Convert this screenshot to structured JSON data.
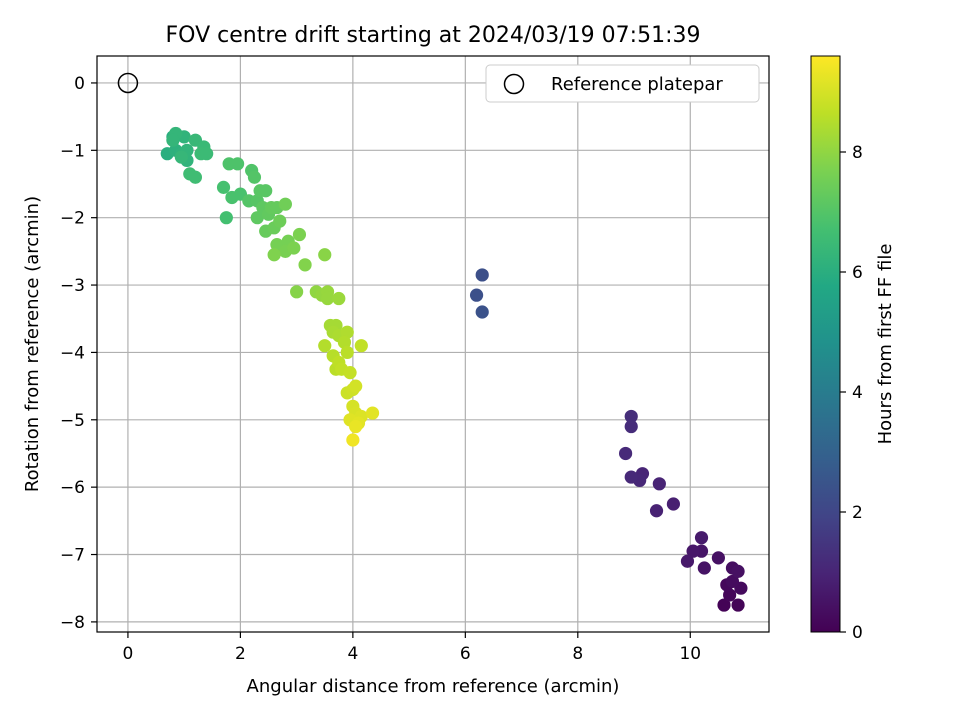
{
  "chart_data": {
    "type": "scatter",
    "title": "FOV centre drift starting at 2024/03/19 07:51:39",
    "xlabel": "Angular distance from reference (arcmin)",
    "ylabel": "Rotation from reference (arcmin)",
    "xlim": [
      -0.55,
      11.4
    ],
    "ylim": [
      -8.15,
      0.4
    ],
    "xticks": [
      0,
      2,
      4,
      6,
      8,
      10
    ],
    "yticks": [
      0,
      -1,
      -2,
      -3,
      -4,
      -5,
      -6,
      -7,
      -8
    ],
    "grid": true,
    "legend": {
      "position": "top-right",
      "entries": [
        "Reference platepar"
      ]
    },
    "reference_point": {
      "x": 0,
      "y": 0
    },
    "colorbar": {
      "label": "Hours from first FF file",
      "min": 0,
      "max": 9.6,
      "ticks": [
        0,
        2,
        4,
        6,
        8
      ],
      "colormap": "viridis"
    },
    "points": [
      {
        "x": 10.6,
        "y": -7.75,
        "h": 0.05
      },
      {
        "x": 10.85,
        "y": -7.75,
        "h": 0.1
      },
      {
        "x": 10.7,
        "y": -7.6,
        "h": 0.15
      },
      {
        "x": 10.65,
        "y": -7.45,
        "h": 0.2
      },
      {
        "x": 10.9,
        "y": -7.5,
        "h": 0.25
      },
      {
        "x": 10.75,
        "y": -7.4,
        "h": 0.3
      },
      {
        "x": 10.75,
        "y": -7.2,
        "h": 0.35
      },
      {
        "x": 10.85,
        "y": -7.25,
        "h": 0.4
      },
      {
        "x": 10.5,
        "y": -7.05,
        "h": 0.45
      },
      {
        "x": 10.25,
        "y": -7.2,
        "h": 0.5
      },
      {
        "x": 10.2,
        "y": -6.95,
        "h": 0.55
      },
      {
        "x": 10.05,
        "y": -6.95,
        "h": 0.6
      },
      {
        "x": 9.95,
        "y": -7.1,
        "h": 0.65
      },
      {
        "x": 10.2,
        "y": -6.75,
        "h": 0.7
      },
      {
        "x": 9.7,
        "y": -6.25,
        "h": 0.85
      },
      {
        "x": 9.4,
        "y": -6.35,
        "h": 0.9
      },
      {
        "x": 9.45,
        "y": -5.95,
        "h": 0.95
      },
      {
        "x": 9.15,
        "y": -5.8,
        "h": 1.0
      },
      {
        "x": 9.1,
        "y": -5.9,
        "h": 1.05
      },
      {
        "x": 8.95,
        "y": -5.85,
        "h": 1.1
      },
      {
        "x": 8.85,
        "y": -5.5,
        "h": 1.15
      },
      {
        "x": 8.95,
        "y": -5.1,
        "h": 1.2
      },
      {
        "x": 8.95,
        "y": -4.95,
        "h": 1.25
      },
      {
        "x": 6.3,
        "y": -2.85,
        "h": 2.3
      },
      {
        "x": 6.2,
        "y": -3.15,
        "h": 2.35
      },
      {
        "x": 6.3,
        "y": -3.4,
        "h": 2.4
      },
      {
        "x": 0.7,
        "y": -1.05,
        "h": 6.0
      },
      {
        "x": 0.8,
        "y": -0.8,
        "h": 6.0
      },
      {
        "x": 0.85,
        "y": -1.0,
        "h": 6.1
      },
      {
        "x": 0.95,
        "y": -1.05,
        "h": 6.15
      },
      {
        "x": 1.0,
        "y": -0.8,
        "h": 6.2
      },
      {
        "x": 1.05,
        "y": -1.15,
        "h": 6.2
      },
      {
        "x": 1.05,
        "y": -1.0,
        "h": 6.25
      },
      {
        "x": 0.85,
        "y": -0.75,
        "h": 6.3
      },
      {
        "x": 0.8,
        "y": -0.85,
        "h": 6.3
      },
      {
        "x": 0.95,
        "y": -1.1,
        "h": 6.35
      },
      {
        "x": 1.2,
        "y": -0.85,
        "h": 6.4
      },
      {
        "x": 1.35,
        "y": -0.95,
        "h": 6.45
      },
      {
        "x": 1.3,
        "y": -1.05,
        "h": 6.5
      },
      {
        "x": 1.4,
        "y": -1.05,
        "h": 6.5
      },
      {
        "x": 1.1,
        "y": -1.35,
        "h": 6.6
      },
      {
        "x": 1.2,
        "y": -1.4,
        "h": 6.6
      },
      {
        "x": 1.75,
        "y": -2.0,
        "h": 6.7
      },
      {
        "x": 1.7,
        "y": -1.55,
        "h": 6.75
      },
      {
        "x": 1.85,
        "y": -1.7,
        "h": 6.8
      },
      {
        "x": 2.0,
        "y": -1.65,
        "h": 6.8
      },
      {
        "x": 1.8,
        "y": -1.2,
        "h": 6.9
      },
      {
        "x": 1.95,
        "y": -1.2,
        "h": 6.9
      },
      {
        "x": 2.2,
        "y": -1.3,
        "h": 6.95
      },
      {
        "x": 2.25,
        "y": -1.4,
        "h": 7.0
      },
      {
        "x": 2.15,
        "y": -1.75,
        "h": 7.0
      },
      {
        "x": 2.3,
        "y": -1.75,
        "h": 7.05
      },
      {
        "x": 2.35,
        "y": -1.6,
        "h": 7.1
      },
      {
        "x": 2.45,
        "y": -1.6,
        "h": 7.1
      },
      {
        "x": 2.3,
        "y": -2.0,
        "h": 7.2
      },
      {
        "x": 2.4,
        "y": -1.85,
        "h": 7.2
      },
      {
        "x": 2.5,
        "y": -1.95,
        "h": 7.25
      },
      {
        "x": 2.55,
        "y": -1.85,
        "h": 7.3
      },
      {
        "x": 2.65,
        "y": -1.85,
        "h": 7.3
      },
      {
        "x": 2.45,
        "y": -2.2,
        "h": 7.35
      },
      {
        "x": 2.6,
        "y": -2.15,
        "h": 7.4
      },
      {
        "x": 2.7,
        "y": -2.05,
        "h": 7.45
      },
      {
        "x": 2.8,
        "y": -1.8,
        "h": 7.5
      },
      {
        "x": 2.65,
        "y": -2.4,
        "h": 7.6
      },
      {
        "x": 2.85,
        "y": -2.35,
        "h": 7.6
      },
      {
        "x": 2.8,
        "y": -2.5,
        "h": 7.65
      },
      {
        "x": 2.95,
        "y": -2.45,
        "h": 7.7
      },
      {
        "x": 3.05,
        "y": -2.25,
        "h": 7.7
      },
      {
        "x": 2.6,
        "y": -2.55,
        "h": 7.75
      },
      {
        "x": 3.15,
        "y": -2.7,
        "h": 7.8
      },
      {
        "x": 3.0,
        "y": -3.1,
        "h": 7.85
      },
      {
        "x": 3.5,
        "y": -2.55,
        "h": 7.9
      },
      {
        "x": 3.35,
        "y": -3.1,
        "h": 8.0
      },
      {
        "x": 3.45,
        "y": -3.15,
        "h": 8.05
      },
      {
        "x": 3.55,
        "y": -3.1,
        "h": 8.1
      },
      {
        "x": 3.55,
        "y": -3.2,
        "h": 8.1
      },
      {
        "x": 3.75,
        "y": -3.2,
        "h": 8.15
      },
      {
        "x": 3.6,
        "y": -3.6,
        "h": 8.3
      },
      {
        "x": 3.7,
        "y": -3.6,
        "h": 8.3
      },
      {
        "x": 3.65,
        "y": -3.7,
        "h": 8.35
      },
      {
        "x": 3.75,
        "y": -3.75,
        "h": 8.4
      },
      {
        "x": 3.9,
        "y": -3.7,
        "h": 8.45
      },
      {
        "x": 3.5,
        "y": -3.9,
        "h": 8.5
      },
      {
        "x": 3.85,
        "y": -3.85,
        "h": 8.5
      },
      {
        "x": 3.65,
        "y": -4.05,
        "h": 8.55
      },
      {
        "x": 3.7,
        "y": -4.25,
        "h": 8.6
      },
      {
        "x": 3.9,
        "y": -4.0,
        "h": 8.6
      },
      {
        "x": 3.75,
        "y": -4.15,
        "h": 8.65
      },
      {
        "x": 3.8,
        "y": -4.25,
        "h": 8.7
      },
      {
        "x": 4.15,
        "y": -3.9,
        "h": 8.7
      },
      {
        "x": 3.95,
        "y": -4.3,
        "h": 8.75
      },
      {
        "x": 3.9,
        "y": -4.6,
        "h": 8.85
      },
      {
        "x": 4.0,
        "y": -4.55,
        "h": 8.9
      },
      {
        "x": 4.05,
        "y": -4.5,
        "h": 8.95
      },
      {
        "x": 4.0,
        "y": -4.8,
        "h": 9.0
      },
      {
        "x": 4.05,
        "y": -4.9,
        "h": 9.05
      },
      {
        "x": 4.15,
        "y": -4.95,
        "h": 9.1
      },
      {
        "x": 3.95,
        "y": -5.0,
        "h": 9.15
      },
      {
        "x": 4.1,
        "y": -5.05,
        "h": 9.2
      },
      {
        "x": 4.35,
        "y": -4.9,
        "h": 9.2
      },
      {
        "x": 4.05,
        "y": -5.1,
        "h": 9.3
      },
      {
        "x": 4.0,
        "y": -5.3,
        "h": 9.4
      }
    ]
  }
}
